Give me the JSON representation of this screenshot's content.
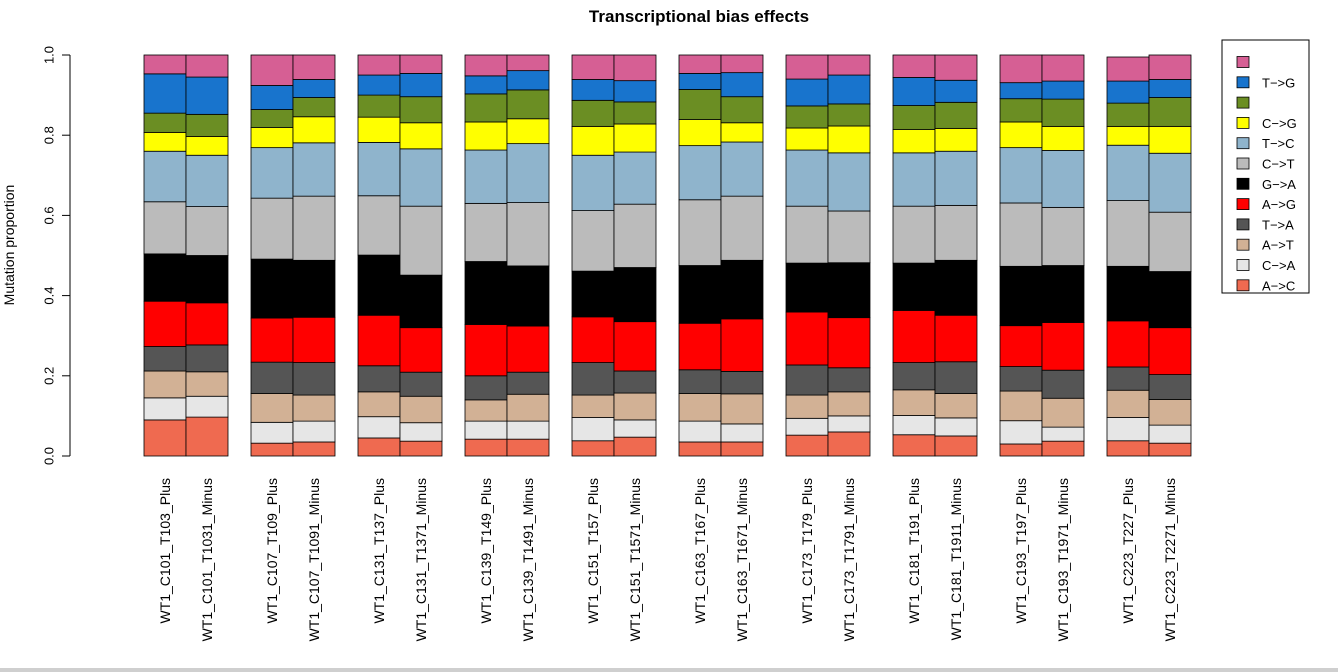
{
  "chart_data": {
    "type": "bar",
    "stacked": true,
    "title": "Transcriptional bias effects",
    "xlabel": "",
    "ylabel": "Mutation proportion",
    "ylim": [
      0,
      1
    ],
    "yticks": [
      "0.0",
      "0.2",
      "0.4",
      "0.6",
      "0.8",
      "1.0"
    ],
    "legend_position": "right",
    "categories": [
      "WT1_C101_T103_Plus",
      "WT1_C101_T1031_Minus",
      "WT1_C107_T109_Plus",
      "WT1_C107_T1091_Minus",
      "WT1_C131_T137_Plus",
      "WT1_C131_T1371_Minus",
      "WT1_C139_T149_Plus",
      "WT1_C139_T1491_Minus",
      "WT1_C151_T157_Plus",
      "WT1_C151_T1571_Minus",
      "WT1_C163_T167_Plus",
      "WT1_C163_T1671_Minus",
      "WT1_C173_T179_Plus",
      "WT1_C173_T1791_Minus",
      "WT1_C181_T191_Plus",
      "WT1_C181_T1911_Minus",
      "WT1_C193_T197_Plus",
      "WT1_C193_T1971_Minus",
      "WT1_C223_T227_Plus",
      "WT1_C223_T2271_Minus"
    ],
    "series": [
      {
        "name": "A->C",
        "label": "A−>C",
        "color": "#ef6a50",
        "values": [
          0.09,
          0.097,
          0.032,
          0.035,
          0.045,
          0.037,
          0.042,
          0.042,
          0.038,
          0.047,
          0.035,
          0.035,
          0.052,
          0.06,
          0.053,
          0.05,
          0.03,
          0.037,
          0.038,
          0.032
        ]
      },
      {
        "name": "C->A",
        "label": "C−>A",
        "color": "#e6e6e6",
        "values": [
          0.055,
          0.052,
          0.052,
          0.052,
          0.053,
          0.046,
          0.045,
          0.045,
          0.058,
          0.043,
          0.052,
          0.045,
          0.042,
          0.04,
          0.048,
          0.045,
          0.058,
          0.035,
          0.058,
          0.045
        ]
      },
      {
        "name": "A->T",
        "label": "A−>T",
        "color": "#d2b195",
        "values": [
          0.067,
          0.061,
          0.072,
          0.065,
          0.062,
          0.066,
          0.053,
          0.067,
          0.056,
          0.067,
          0.069,
          0.075,
          0.058,
          0.06,
          0.064,
          0.061,
          0.074,
          0.072,
          0.068,
          0.064
        ]
      },
      {
        "name": "T->A",
        "label": "T−>A",
        "color": "#555555",
        "values": [
          0.061,
          0.067,
          0.078,
          0.081,
          0.065,
          0.06,
          0.06,
          0.055,
          0.081,
          0.055,
          0.059,
          0.056,
          0.075,
          0.06,
          0.068,
          0.079,
          0.061,
          0.07,
          0.058,
          0.062
        ]
      },
      {
        "name": "A->G",
        "label": "A−>G",
        "color": "#ff0000",
        "values": [
          0.113,
          0.105,
          0.11,
          0.113,
          0.126,
          0.111,
          0.128,
          0.115,
          0.114,
          0.123,
          0.116,
          0.131,
          0.132,
          0.125,
          0.13,
          0.116,
          0.102,
          0.119,
          0.115,
          0.117
        ]
      },
      {
        "name": "G->A",
        "label": "G−>A",
        "color": "#000000",
        "values": [
          0.118,
          0.118,
          0.147,
          0.142,
          0.15,
          0.131,
          0.157,
          0.15,
          0.114,
          0.135,
          0.144,
          0.146,
          0.122,
          0.137,
          0.118,
          0.137,
          0.148,
          0.142,
          0.136,
          0.14
        ]
      },
      {
        "name": "C->T",
        "label": "C−>T",
        "color": "#bbbbbb",
        "values": [
          0.13,
          0.122,
          0.152,
          0.16,
          0.148,
          0.172,
          0.145,
          0.158,
          0.151,
          0.158,
          0.164,
          0.16,
          0.142,
          0.129,
          0.142,
          0.137,
          0.158,
          0.145,
          0.164,
          0.148
        ]
      },
      {
        "name": "T->C",
        "label": "T−>C",
        "color": "#8fb4cc",
        "values": [
          0.126,
          0.128,
          0.126,
          0.133,
          0.133,
          0.143,
          0.133,
          0.147,
          0.138,
          0.13,
          0.135,
          0.135,
          0.14,
          0.145,
          0.133,
          0.135,
          0.138,
          0.142,
          0.138,
          0.147
        ]
      },
      {
        "name": "C->G",
        "label": "C−>G",
        "color": "#ffff00",
        "values": [
          0.047,
          0.047,
          0.05,
          0.065,
          0.063,
          0.065,
          0.07,
          0.062,
          0.072,
          0.07,
          0.065,
          0.048,
          0.055,
          0.067,
          0.058,
          0.057,
          0.064,
          0.06,
          0.047,
          0.067
        ]
      },
      {
        "name": "C->G-green",
        "label": "",
        "color": "#6b8e23",
        "values": [
          0.048,
          0.055,
          0.045,
          0.048,
          0.055,
          0.065,
          0.07,
          0.072,
          0.065,
          0.055,
          0.075,
          0.065,
          0.055,
          0.055,
          0.06,
          0.065,
          0.058,
          0.068,
          0.058,
          0.072
        ]
      },
      {
        "name": "T->G",
        "label": "T−>G",
        "color": "#1874cd",
        "values": [
          0.098,
          0.093,
          0.06,
          0.045,
          0.05,
          0.058,
          0.045,
          0.048,
          0.052,
          0.053,
          0.04,
          0.06,
          0.067,
          0.072,
          0.07,
          0.055,
          0.04,
          0.045,
          0.055,
          0.045
        ]
      },
      {
        "name": "T->G-pink",
        "label": "",
        "color": "#d65f94",
        "values": [
          0.047,
          0.055,
          0.076,
          0.061,
          0.05,
          0.046,
          0.052,
          0.039,
          0.061,
          0.064,
          0.046,
          0.044,
          0.06,
          0.05,
          0.056,
          0.063,
          0.069,
          0.065,
          0.06,
          0.061
        ]
      }
    ]
  }
}
